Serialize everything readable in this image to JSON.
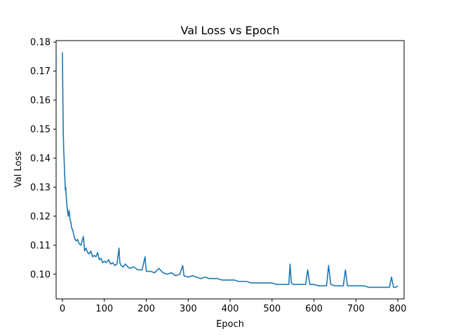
{
  "chart_data": {
    "type": "line",
    "title": "Val Loss vs Epoch",
    "xlabel": "Epoch",
    "ylabel": "Val Loss",
    "xlim": [
      -15,
      815
    ],
    "ylim": [
      0.0915,
      0.1805
    ],
    "x_ticks": [
      0,
      100,
      200,
      300,
      400,
      500,
      600,
      700,
      800
    ],
    "y_ticks": [
      0.1,
      0.11,
      0.12,
      0.13,
      0.14,
      0.15,
      0.16,
      0.17,
      0.18
    ],
    "grid": false,
    "series": [
      {
        "color": "#1f77b4",
        "x": [
          0,
          1,
          2,
          3,
          4,
          5,
          6,
          7,
          8,
          9,
          10,
          12,
          14,
          16,
          18,
          20,
          22,
          25,
          28,
          30,
          33,
          36,
          40,
          44,
          48,
          50,
          53,
          56,
          60,
          64,
          68,
          72,
          76,
          80,
          84,
          88,
          92,
          96,
          100,
          105,
          110,
          115,
          120,
          125,
          130,
          135,
          137,
          140,
          145,
          150,
          160,
          170,
          180,
          190,
          197,
          200,
          210,
          220,
          230,
          240,
          250,
          260,
          270,
          280,
          287,
          290,
          300,
          310,
          320,
          330,
          340,
          350,
          360,
          370,
          380,
          390,
          400,
          410,
          420,
          430,
          440,
          450,
          460,
          470,
          480,
          490,
          500,
          510,
          520,
          530,
          540,
          543,
          546,
          550,
          560,
          570,
          580,
          585,
          590,
          600,
          610,
          620,
          630,
          635,
          640,
          650,
          660,
          670,
          675,
          680,
          690,
          700,
          710,
          720,
          730,
          740,
          750,
          760,
          770,
          780,
          785,
          790,
          795,
          800
        ],
        "y": [
          0.1765,
          0.162,
          0.149,
          0.143,
          0.14,
          0.136,
          0.132,
          0.129,
          0.13,
          0.127,
          0.125,
          0.122,
          0.12,
          0.122,
          0.119,
          0.118,
          0.116,
          0.115,
          0.113,
          0.112,
          0.1115,
          0.112,
          0.1105,
          0.11,
          0.112,
          0.113,
          0.108,
          0.109,
          0.1075,
          0.107,
          0.108,
          0.106,
          0.1065,
          0.106,
          0.1075,
          0.105,
          0.1055,
          0.104,
          0.1045,
          0.104,
          0.105,
          0.1035,
          0.104,
          0.103,
          0.1035,
          0.109,
          0.104,
          0.103,
          0.1025,
          0.1035,
          0.102,
          0.1025,
          0.1015,
          0.1015,
          0.106,
          0.101,
          0.101,
          0.1005,
          0.102,
          0.1005,
          0.1,
          0.1005,
          0.0995,
          0.1,
          0.103,
          0.0995,
          0.099,
          0.0995,
          0.099,
          0.0985,
          0.099,
          0.0985,
          0.0985,
          0.0985,
          0.098,
          0.098,
          0.098,
          0.098,
          0.0975,
          0.0975,
          0.0975,
          0.097,
          0.097,
          0.097,
          0.097,
          0.097,
          0.097,
          0.0965,
          0.0965,
          0.0965,
          0.0965,
          0.1035,
          0.097,
          0.0965,
          0.0965,
          0.0965,
          0.0965,
          0.1015,
          0.0965,
          0.0965,
          0.096,
          0.096,
          0.096,
          0.103,
          0.0965,
          0.096,
          0.096,
          0.096,
          0.1015,
          0.096,
          0.096,
          0.096,
          0.096,
          0.096,
          0.0955,
          0.0955,
          0.0955,
          0.0955,
          0.0955,
          0.0955,
          0.099,
          0.0955,
          0.0955,
          0.096
        ]
      }
    ]
  }
}
